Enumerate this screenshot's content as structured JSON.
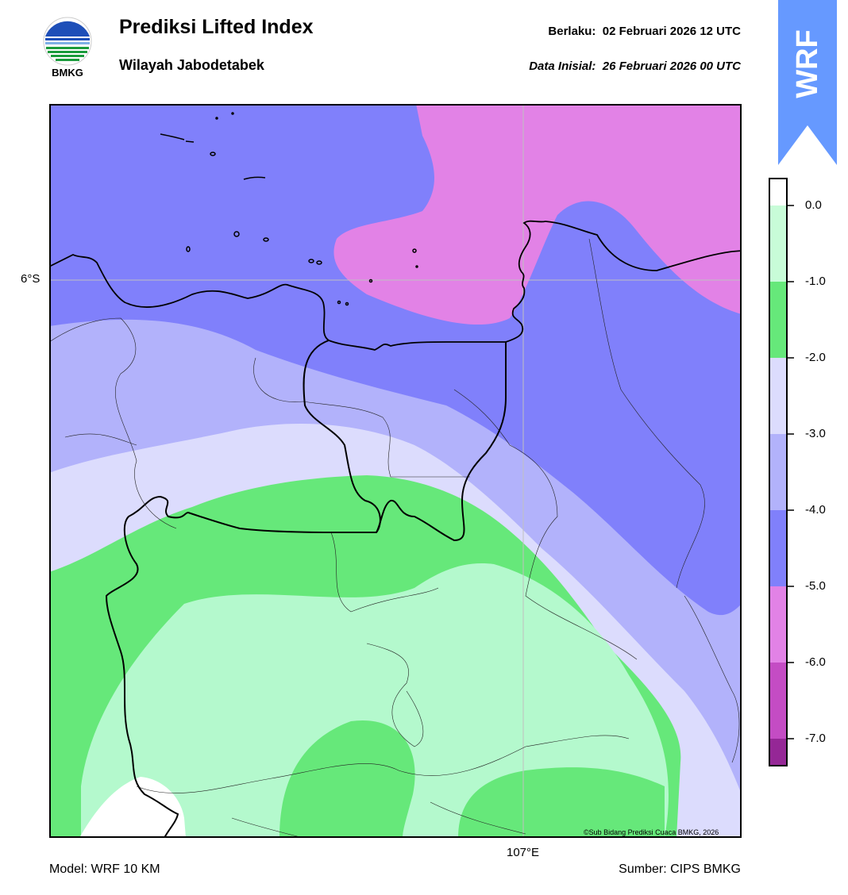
{
  "header": {
    "logo_text": "BMKG",
    "title": "Prediksi Lifted Index",
    "subtitle": "Wilayah Jabodetabek",
    "valid_label": "Berlaku:  02 Februari 2026 12 UTC",
    "init_label": "Data Inisial:  26 Februari 2026 00 UTC",
    "model_tag": "WRF"
  },
  "map": {
    "lat_label": "6°S",
    "lon_label": "107°E",
    "credit": "©Sub Bidang Prediksi Cuaca BMKG, 2026"
  },
  "colorbar": {
    "ticks": [
      "0.0",
      "-1.0",
      "-2.0",
      "-3.0",
      "-4.0",
      "-5.0",
      "-6.0",
      "-7.0"
    ],
    "colors": {
      "above_0": "#ffffff",
      "0_to_-1": "#c8fcd8",
      "-1_to_-2": "#66e87a",
      "-2_to_-3": "#dcdcfd",
      "-3_to_-4": "#b2b2fb",
      "-4_to_-5": "#8080fb",
      "-5_to_-6": "#e282e6",
      "-6_to_-7": "#c44cc4",
      "below_-7": "#952796"
    }
  },
  "footer": {
    "model": "Model: WRF 10 KM",
    "source": "Sumber: CIPS BMKG"
  },
  "icons": [
    "bmkg-logo-icon",
    "wrf-arrow-icon"
  ]
}
